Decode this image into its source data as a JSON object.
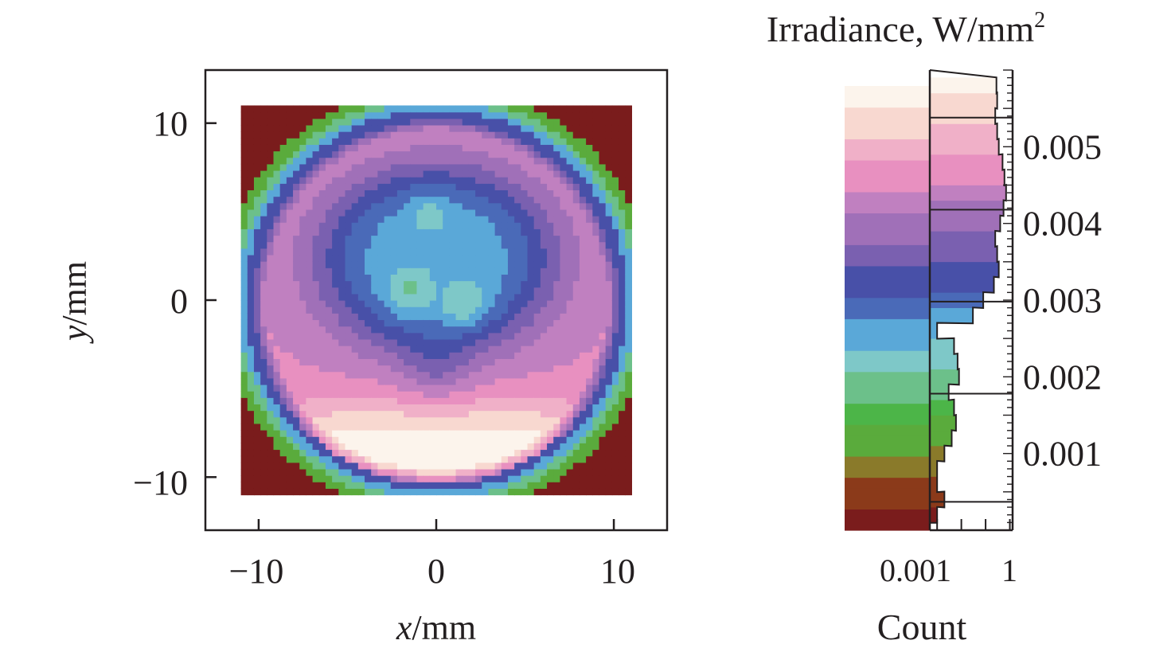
{
  "chart_data": [
    {
      "type": "heatmap",
      "title": "",
      "xlabel_var": "x",
      "xlabel_unit": "/mm",
      "ylabel_var": "y",
      "ylabel_unit": "/mm",
      "xlim": [
        -13,
        13
      ],
      "ylim": [
        -13,
        13
      ],
      "data_extent": [
        -11,
        11
      ],
      "xticks": [
        -10,
        0,
        10
      ],
      "yticks": [
        -10,
        0,
        10
      ],
      "xtick_labels": [
        "−10",
        "0",
        "10"
      ],
      "ytick_labels": [
        "−10",
        "0",
        "10"
      ],
      "grid": false,
      "description_values": {
        "center_min_irradiance": 0.0028,
        "bottom_max_irradiance": 0.0058,
        "corner_irradiance": 0.0
      }
    },
    {
      "type": "bar",
      "title": "Irradiance, W/mm²",
      "title_main": "Irradiance, W/mm",
      "title_sup": "2",
      "xlabel": "Count",
      "x_scale": "log",
      "xticks": [
        0.001,
        1
      ],
      "xtick_labels": [
        "0.001",
        "1"
      ],
      "ylim": [
        0,
        0.006
      ],
      "yticks": [
        0.001,
        0.002,
        0.003,
        0.004,
        0.005
      ],
      "ytick_labels": [
        "0.001",
        "0.002",
        "0.003",
        "0.004",
        "0.005"
      ],
      "bin_edges": [
        0.00037,
        0.00178,
        0.00298,
        0.00418,
        0.00538
      ],
      "colormap": [
        "#7a1c1c",
        "#8b3a1a",
        "#8a7a2a",
        "#5aab3c",
        "#4cb548",
        "#6cc08a",
        "#7ec8c8",
        "#5aa8d8",
        "#4a6ab8",
        "#4850a8",
        "#7a60b0",
        "#a070b8",
        "#c080c0",
        "#e890c0",
        "#f0b0c8",
        "#f8d8d0",
        "#fcf4ec"
      ],
      "histogram": {
        "bin_irradiance": [
          0.0002,
          0.0004,
          0.0006,
          0.0008,
          0.001,
          0.0012,
          0.0014,
          0.0016,
          0.0018,
          0.002,
          0.0022,
          0.0024,
          0.0026,
          0.0028,
          0.003,
          0.0032,
          0.0034,
          0.0036,
          0.0038,
          0.004,
          0.0042,
          0.0044,
          0.0046,
          0.0048,
          0.005,
          0.0052,
          0.0054,
          0.0056,
          0.0058
        ],
        "count": [
          0.001,
          0.002,
          0.001,
          0.001,
          0.002,
          0.004,
          0.006,
          0.005,
          0.003,
          0.008,
          0.007,
          0.005,
          0.001,
          0.03,
          0.08,
          0.22,
          0.35,
          0.3,
          0.25,
          0.4,
          0.55,
          0.7,
          0.6,
          0.5,
          0.35,
          0.3,
          0.25,
          0.3,
          0.28
        ]
      }
    }
  ]
}
